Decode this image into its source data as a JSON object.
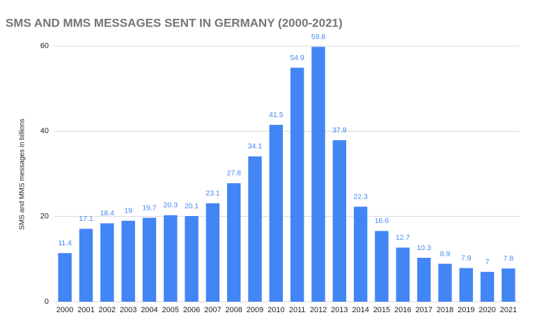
{
  "chart_data": {
    "type": "bar",
    "title": "SMS AND MMS MESSAGES SENT IN GERMANY (2000-2021)",
    "y_label": "SMS and MMS messages in billions",
    "categories": [
      "2000",
      "2001",
      "2002",
      "2003",
      "2004",
      "2005",
      "2006",
      "2007",
      "2008",
      "2009",
      "2010",
      "2011",
      "2012",
      "2013",
      "2014",
      "2015",
      "2016",
      "2017",
      "2018",
      "2019",
      "2020",
      "2021"
    ],
    "values": [
      11.4,
      17.1,
      18.4,
      19,
      19.7,
      20.3,
      20.1,
      23.1,
      27.8,
      34.1,
      41.5,
      54.9,
      59.8,
      37.9,
      22.3,
      16.6,
      12.7,
      10.3,
      8.9,
      7.9,
      7,
      7.8
    ],
    "color": "#4285f4",
    "ylim": [
      0,
      60
    ],
    "yticks": [
      0,
      20,
      40,
      60
    ],
    "grid": true
  }
}
